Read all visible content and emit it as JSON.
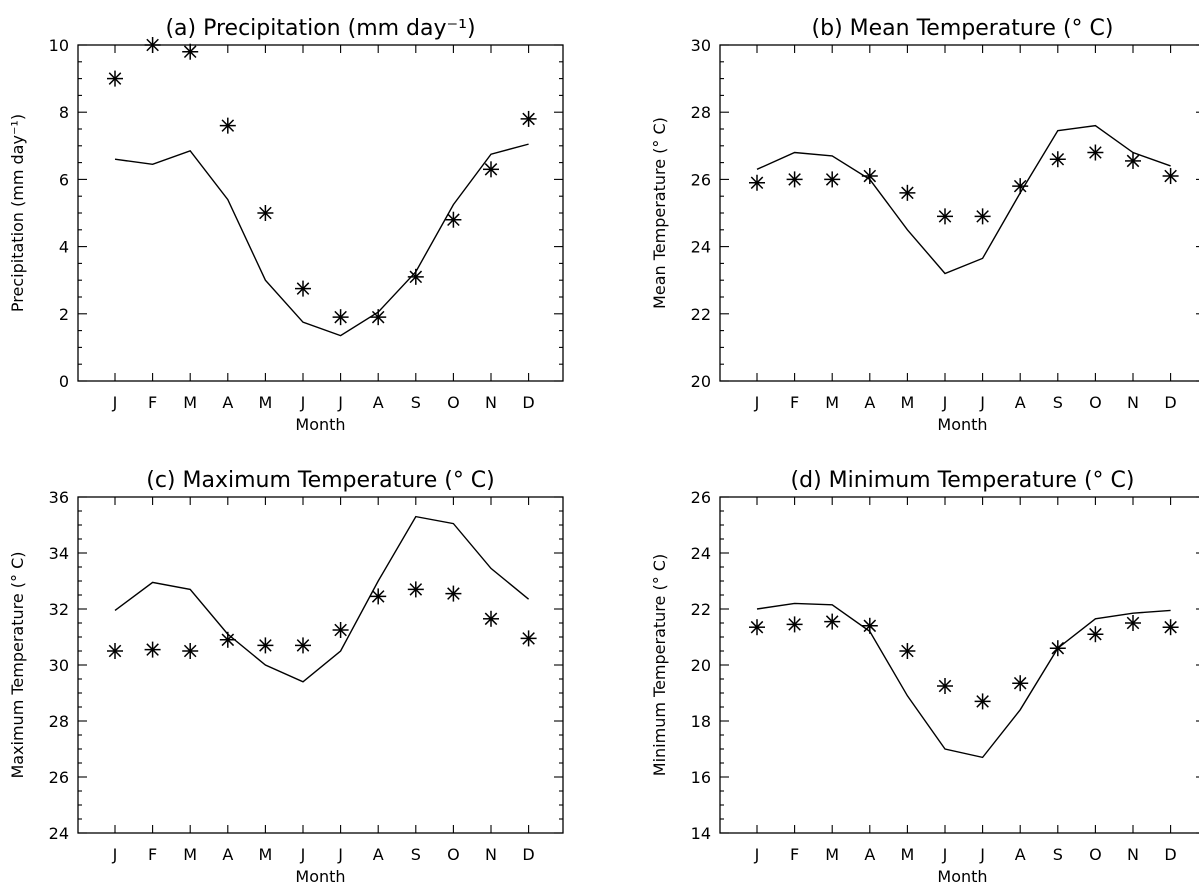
{
  "chart_data": [
    {
      "id": "a",
      "type": "line",
      "title": "(a)   Precipitation (mm day⁻¹)",
      "xlabel": "Month",
      "ylabel": "Precipitation (mm day⁻¹)",
      "categories": [
        "J",
        "F",
        "M",
        "A",
        "M",
        "J",
        "J",
        "A",
        "S",
        "O",
        "N",
        "D"
      ],
      "ylim": [
        0,
        10
      ],
      "yticks": [
        0,
        2,
        4,
        6,
        8,
        10
      ],
      "ytick_labels": [
        "0",
        "2",
        "4",
        "6",
        "8",
        "10"
      ],
      "series": [
        {
          "marker": "line",
          "values": [
            6.6,
            6.45,
            6.85,
            5.4,
            3.0,
            1.75,
            1.35,
            2.05,
            3.25,
            5.25,
            6.75,
            7.05
          ]
        },
        {
          "marker": "asterisk",
          "values": [
            9.0,
            10.0,
            9.8,
            7.6,
            5.0,
            2.75,
            1.9,
            1.9,
            3.1,
            4.8,
            6.3,
            7.8
          ]
        }
      ]
    },
    {
      "id": "b",
      "type": "line",
      "title": "(b)   Mean Temperature (° C)",
      "xlabel": "Month",
      "ylabel": "Mean Temperature (° C)",
      "categories": [
        "J",
        "F",
        "M",
        "A",
        "M",
        "J",
        "J",
        "A",
        "S",
        "O",
        "N",
        "D"
      ],
      "ylim": [
        20,
        30
      ],
      "yticks": [
        20,
        22,
        24,
        26,
        28,
        30
      ],
      "ytick_labels": [
        "20",
        "22",
        "24",
        "26",
        "28",
        "30"
      ],
      "series": [
        {
          "marker": "line",
          "values": [
            26.3,
            26.8,
            26.7,
            26.0,
            24.5,
            23.2,
            23.65,
            25.6,
            27.45,
            27.6,
            26.8,
            26.4
          ]
        },
        {
          "marker": "asterisk",
          "values": [
            25.9,
            26.0,
            26.0,
            26.1,
            25.6,
            24.9,
            24.9,
            25.8,
            26.6,
            26.8,
            26.55,
            26.1
          ]
        }
      ]
    },
    {
      "id": "c",
      "type": "line",
      "title": "(c)   Maximum Temperature (° C)",
      "xlabel": "Month",
      "ylabel": "Maximum Temperature (° C)",
      "categories": [
        "J",
        "F",
        "M",
        "A",
        "M",
        "J",
        "J",
        "A",
        "S",
        "O",
        "N",
        "D"
      ],
      "ylim": [
        24,
        36
      ],
      "yticks": [
        24,
        26,
        28,
        30,
        32,
        34,
        36
      ],
      "ytick_labels": [
        "24",
        "26",
        "28",
        "30",
        "32",
        "34",
        "36"
      ],
      "series": [
        {
          "marker": "line",
          "values": [
            31.95,
            32.95,
            32.7,
            31.1,
            30.0,
            29.4,
            30.5,
            33.0,
            35.3,
            35.05,
            33.45,
            32.35
          ]
        },
        {
          "marker": "asterisk",
          "values": [
            30.5,
            30.55,
            30.5,
            30.9,
            30.7,
            30.7,
            31.25,
            32.45,
            32.7,
            32.55,
            31.65,
            30.95
          ]
        }
      ]
    },
    {
      "id": "d",
      "type": "line",
      "title": "(d)   Minimum Temperature (° C)",
      "xlabel": "Month",
      "ylabel": "Minimum Temperature (° C)",
      "categories": [
        "J",
        "F",
        "M",
        "A",
        "M",
        "J",
        "J",
        "A",
        "S",
        "O",
        "N",
        "D"
      ],
      "ylim": [
        14,
        26
      ],
      "yticks": [
        14,
        16,
        18,
        20,
        22,
        24,
        26
      ],
      "ytick_labels": [
        "14",
        "16",
        "18",
        "20",
        "22",
        "24",
        "26"
      ],
      "series": [
        {
          "marker": "line",
          "values": [
            22.0,
            22.2,
            22.15,
            21.2,
            18.9,
            17.0,
            16.7,
            18.4,
            20.6,
            21.65,
            21.85,
            21.95
          ]
        },
        {
          "marker": "asterisk",
          "values": [
            21.35,
            21.45,
            21.55,
            21.4,
            20.5,
            19.25,
            18.7,
            19.35,
            20.6,
            21.1,
            21.5,
            21.35
          ]
        }
      ]
    }
  ]
}
